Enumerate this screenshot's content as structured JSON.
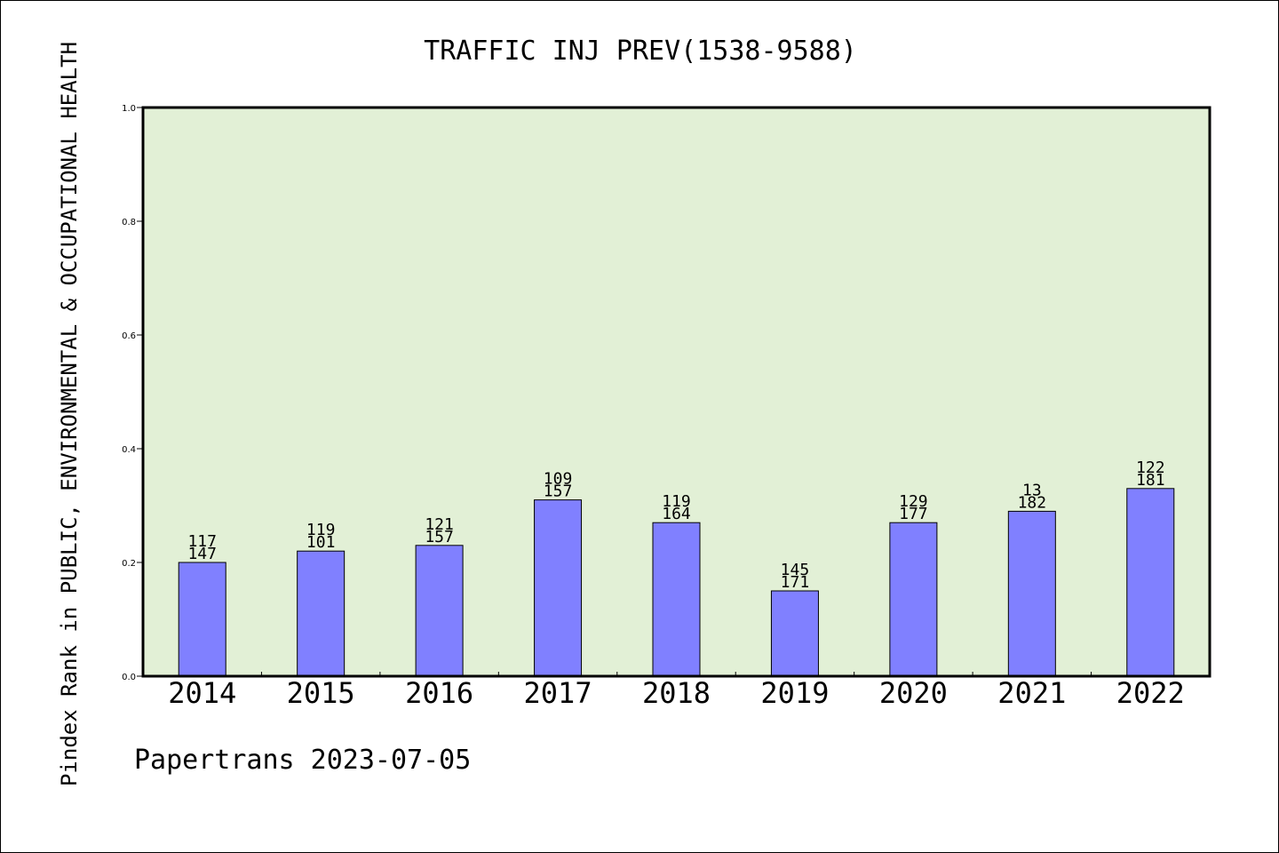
{
  "chart_data": {
    "type": "bar",
    "title": "TRAFFIC INJ PREV(1538-9588)",
    "ylabel": "Pindex Rank in PUBLIC, ENVIRONMENTAL & OCCUPATIONAL HEALTH",
    "xlabel": "",
    "footer": "Papertrans 2023-07-05",
    "ylim": [
      0,
      1.0
    ],
    "yticks": [
      "0.0",
      "0.2",
      "0.4",
      "0.6",
      "0.8",
      "1.0"
    ],
    "categories": [
      "2014",
      "2015",
      "2016",
      "2017",
      "2018",
      "2019",
      "2020",
      "2021",
      "2022"
    ],
    "values": [
      0.2,
      0.22,
      0.23,
      0.31,
      0.27,
      0.15,
      0.27,
      0.29,
      0.33
    ],
    "label_top": [
      "117",
      "119",
      "121",
      "109",
      "119",
      "145",
      "129",
      "13",
      "122"
    ],
    "label_bottom": [
      "147",
      "101",
      "157",
      "157",
      "164",
      "171",
      "177",
      "182",
      "181"
    ],
    "colors": {
      "plot_background": "#e2f0d6",
      "bar": "#8080ff",
      "axis": "#000000"
    },
    "grid": false,
    "legend": "none"
  }
}
